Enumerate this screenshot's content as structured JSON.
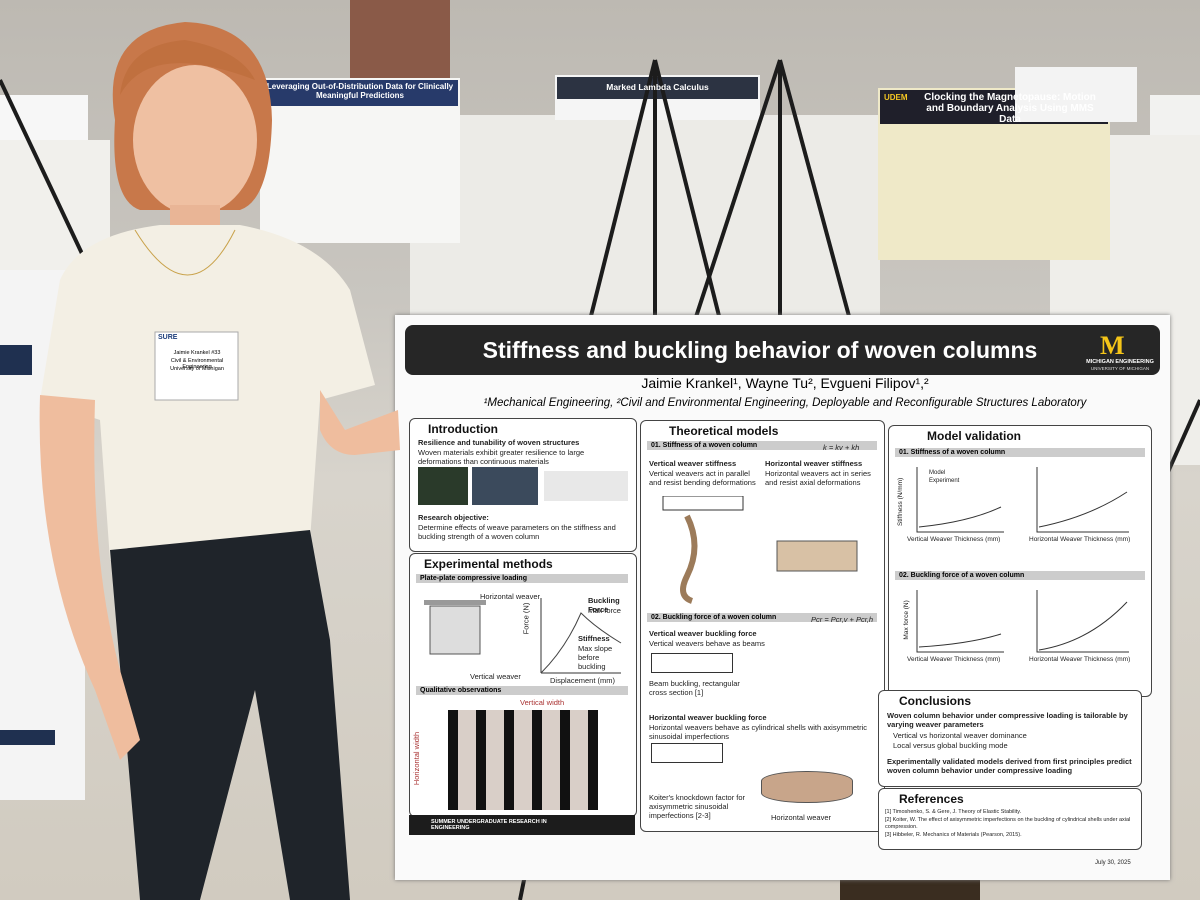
{
  "poster": {
    "title": "Stiffness and buckling behavior of woven columns",
    "authors": "Jaimie Krankel¹, Wayne Tu², Evgueni Filipov¹,²",
    "affiliations": "¹Mechanical Engineering, ²Civil and Environmental Engineering, Deployable and Reconfigurable Structures Laboratory",
    "logo": "MICHIGAN ENGINEERING",
    "logo_sub": "UNIVERSITY OF MICHIGAN",
    "introduction": {
      "heading": "Introduction",
      "subheading": "Resilience and tunability of woven structures",
      "bullet": "Woven materials exhibit greater resilience to large deformations than continuous materials",
      "objective_label": "Research objective:",
      "objective": "Determine effects of weave parameters on the stiffness and buckling strength of a woven column"
    },
    "methods": {
      "heading": "Experimental methods",
      "setup": "Plate-plate compressive loading",
      "horizontal": "Horizontal weaver",
      "vertical": "Vertical weaver",
      "buckling": "Buckling Force",
      "max_force": "Max force",
      "stiffness": "Stiffness",
      "max_slope": "Max slope before buckling",
      "x_label": "Displacement (mm)",
      "y_label": "Force (N)",
      "observations": "Qualitative observations",
      "vertical_width": "Vertical width",
      "horizontal_width": "Horizontal width"
    },
    "theory": {
      "heading": "Theoretical models",
      "s1": "01. Stiffness of a woven column",
      "s1_eq": "k = kv + kh",
      "vs_title": "Vertical weaver stiffness",
      "vs_text": "Vertical weavers act in parallel and resist bending deformations",
      "hs_title": "Horizontal weaver stiffness",
      "hs_text": "Horizontal weavers act in series and resist axial deformations",
      "s2": "02. Buckling force of a woven column",
      "s2_eq": "Pcr = Pcr,v + Pcr,h",
      "vb_title": "Vertical weaver buckling force",
      "vb_text": "Vertical weavers behave as beams",
      "vb_note": "Beam buckling, rectangular cross section [1]",
      "hb_title": "Horizontal weaver buckling force",
      "hb_text": "Horizontal weavers behave as cylindrical shells with axisymmetric sinusoidal imperfections",
      "hb_note": "Koiter's knockdown factor for axisymmetric sinusoidal imperfections [2-3]",
      "hb_label": "Horizontal weaver"
    },
    "validation": {
      "heading": "Model validation",
      "s1": "01. Stiffness of a woven column",
      "s2": "02. Buckling force of a woven column",
      "y1": "Stiffness (N/mm)",
      "y2": "Max force (N)",
      "xv": "Vertical Weaver Thickness (mm)",
      "xh": "Horizontal Weaver Thickness (mm)",
      "model": "Model",
      "experiment": "Experiment"
    },
    "conclusions": {
      "heading": "Conclusions",
      "main": "Woven column behavior under compressive loading is tailorable by varying weaver parameters",
      "b1": "Vertical vs horizontal weaver dominance",
      "b2": "Local versus global buckling mode",
      "final": "Experimentally validated models derived from first principles predict woven column behavior under compressive loading"
    },
    "references": {
      "heading": "References",
      "items": [
        "[1] Timoshenko, S. & Gere, J. Theory of Elastic Stability.",
        "[2] Koiter, W. The effect of axisymmetric imperfections on the buckling of cylindrical shells under axial compression.",
        "[3] Hibbeler, R. Mechanics of Materials (Pearson, 2015)."
      ]
    },
    "footer": "SUMMER UNDERGRADUATE RESEARCH IN ENGINEERING",
    "date": "July 30, 2025"
  },
  "badge": {
    "name": "Jaimie Krankel  #33",
    "dept": "Civil & Environmental Engineering",
    "school": "University of Michigan",
    "program": "SURE"
  },
  "background_posters": [
    {
      "title": "Leveraging Out-of-Distribution Data for Clinically Meaningful Predictions"
    },
    {
      "title": "Marked Lambda Calculus"
    },
    {
      "tag": "UDEM",
      "title": "Clocking the Magnetopause: Motion and Boundary Analysis Using MMS Data"
    }
  ]
}
